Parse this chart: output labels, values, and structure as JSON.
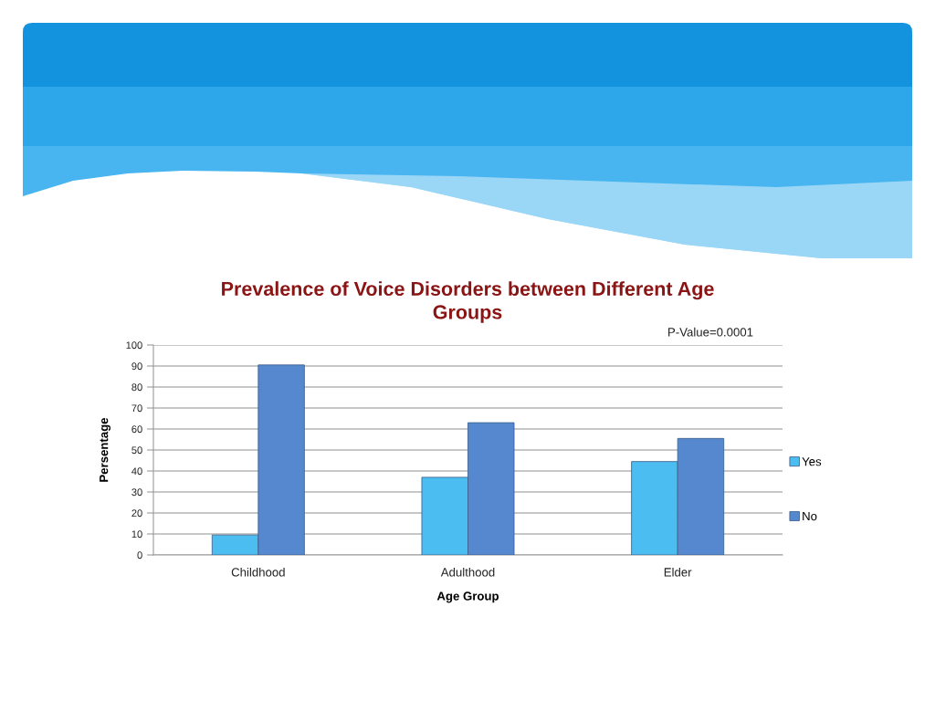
{
  "chart_data": {
    "type": "bar",
    "title": "Prevalence of Voice Disorders between Different Age\nGroups",
    "xlabel": "Age Group",
    "ylabel": "Persentage",
    "annotations": [
      "P-Value=0.0001"
    ],
    "categories": [
      "Childhood",
      "Adulthood",
      "Elder"
    ],
    "series": [
      {
        "name": "Yes",
        "color": "#4cbdf0",
        "values": [
          9.5,
          37,
          44.5
        ]
      },
      {
        "name": "No",
        "color": "#5588cf",
        "values": [
          90.5,
          63,
          55.5
        ]
      }
    ],
    "ylim": [
      0,
      100
    ],
    "yticks": [
      0,
      10,
      20,
      30,
      40,
      50,
      60,
      70,
      80,
      90,
      100
    ],
    "grid": "y",
    "legend": "right"
  }
}
